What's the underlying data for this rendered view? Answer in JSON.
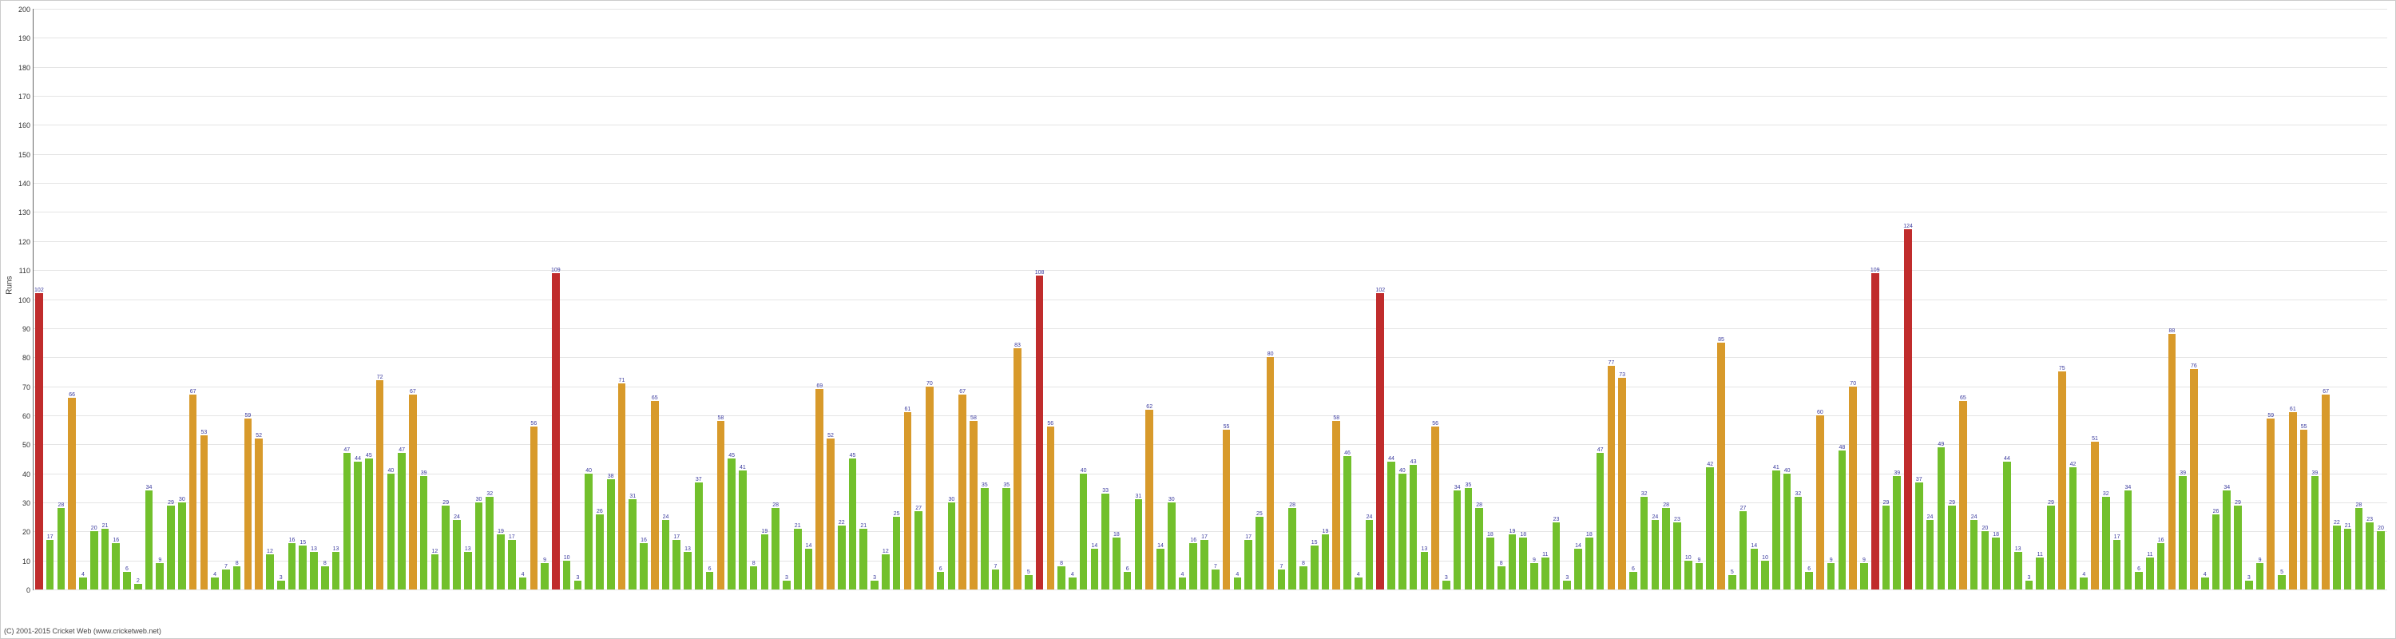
{
  "chart": {
    "type": "bar",
    "ylabel": "Runs",
    "ylim": [
      0,
      200
    ],
    "ytick_step": 10,
    "background_color": "#ffffff",
    "grid_color": "#e5e5e5",
    "label_color": "#3b3b9e",
    "colors": {
      "green": "#72c02c",
      "orange": "#d89a2b",
      "red": "#c02c2c"
    },
    "copyright": "(C) 2001-2015 Cricket Web (www.cricketweb.net)",
    "bars": [
      {
        "v": 102,
        "c": "red"
      },
      {
        "v": 17,
        "c": "green"
      },
      {
        "v": 28,
        "c": "green"
      },
      {
        "v": 66,
        "c": "orange"
      },
      {
        "v": 4,
        "c": "green"
      },
      {
        "v": 20,
        "c": "green"
      },
      {
        "v": 21,
        "c": "green"
      },
      {
        "v": 16,
        "c": "green"
      },
      {
        "v": 6,
        "c": "green"
      },
      {
        "v": 2,
        "c": "green"
      },
      {
        "v": 34,
        "c": "green"
      },
      {
        "v": 9,
        "c": "green"
      },
      {
        "v": 29,
        "c": "green"
      },
      {
        "v": 30,
        "c": "green"
      },
      {
        "v": 67,
        "c": "orange"
      },
      {
        "v": 53,
        "c": "orange"
      },
      {
        "v": 4,
        "c": "green"
      },
      {
        "v": 7,
        "c": "green"
      },
      {
        "v": 8,
        "c": "green"
      },
      {
        "v": 59,
        "c": "orange"
      },
      {
        "v": 52,
        "c": "orange"
      },
      {
        "v": 12,
        "c": "green"
      },
      {
        "v": 3,
        "c": "green"
      },
      {
        "v": 16,
        "c": "green"
      },
      {
        "v": 15,
        "c": "green"
      },
      {
        "v": 13,
        "c": "green"
      },
      {
        "v": 8,
        "c": "green"
      },
      {
        "v": 13,
        "c": "green"
      },
      {
        "v": 47,
        "c": "green"
      },
      {
        "v": 44,
        "c": "green"
      },
      {
        "v": 45,
        "c": "green"
      },
      {
        "v": 72,
        "c": "orange"
      },
      {
        "v": 40,
        "c": "green"
      },
      {
        "v": 47,
        "c": "green"
      },
      {
        "v": 67,
        "c": "orange"
      },
      {
        "v": 39,
        "c": "green"
      },
      {
        "v": 12,
        "c": "green"
      },
      {
        "v": 29,
        "c": "green"
      },
      {
        "v": 24,
        "c": "green"
      },
      {
        "v": 13,
        "c": "green"
      },
      {
        "v": 30,
        "c": "green"
      },
      {
        "v": 32,
        "c": "green"
      },
      {
        "v": 19,
        "c": "green"
      },
      {
        "v": 17,
        "c": "green"
      },
      {
        "v": 4,
        "c": "green"
      },
      {
        "v": 56,
        "c": "orange"
      },
      {
        "v": 9,
        "c": "green"
      },
      {
        "v": 109,
        "c": "red"
      },
      {
        "v": 10,
        "c": "green"
      },
      {
        "v": 3,
        "c": "green"
      },
      {
        "v": 40,
        "c": "green"
      },
      {
        "v": 26,
        "c": "green"
      },
      {
        "v": 38,
        "c": "green"
      },
      {
        "v": 71,
        "c": "orange"
      },
      {
        "v": 31,
        "c": "green"
      },
      {
        "v": 16,
        "c": "green"
      },
      {
        "v": 65,
        "c": "orange"
      },
      {
        "v": 24,
        "c": "green"
      },
      {
        "v": 17,
        "c": "green"
      },
      {
        "v": 13,
        "c": "green"
      },
      {
        "v": 37,
        "c": "green"
      },
      {
        "v": 6,
        "c": "green"
      },
      {
        "v": 58,
        "c": "orange"
      },
      {
        "v": 45,
        "c": "green"
      },
      {
        "v": 41,
        "c": "green"
      },
      {
        "v": 8,
        "c": "green"
      },
      {
        "v": 19,
        "c": "green"
      },
      {
        "v": 28,
        "c": "green"
      },
      {
        "v": 3,
        "c": "green"
      },
      {
        "v": 21,
        "c": "green"
      },
      {
        "v": 14,
        "c": "green"
      },
      {
        "v": 69,
        "c": "orange"
      },
      {
        "v": 52,
        "c": "orange"
      },
      {
        "v": 22,
        "c": "green"
      },
      {
        "v": 45,
        "c": "green"
      },
      {
        "v": 21,
        "c": "green"
      },
      {
        "v": 3,
        "c": "green"
      },
      {
        "v": 12,
        "c": "green"
      },
      {
        "v": 25,
        "c": "green"
      },
      {
        "v": 61,
        "c": "orange"
      },
      {
        "v": 27,
        "c": "green"
      },
      {
        "v": 70,
        "c": "orange"
      },
      {
        "v": 6,
        "c": "green"
      },
      {
        "v": 30,
        "c": "green"
      },
      {
        "v": 67,
        "c": "orange"
      },
      {
        "v": 58,
        "c": "orange"
      },
      {
        "v": 35,
        "c": "green"
      },
      {
        "v": 7,
        "c": "green"
      },
      {
        "v": 35,
        "c": "green"
      },
      {
        "v": 83,
        "c": "orange"
      },
      {
        "v": 5,
        "c": "green"
      },
      {
        "v": 108,
        "c": "red"
      },
      {
        "v": 56,
        "c": "orange"
      },
      {
        "v": 8,
        "c": "green"
      },
      {
        "v": 4,
        "c": "green"
      },
      {
        "v": 40,
        "c": "green"
      },
      {
        "v": 14,
        "c": "green"
      },
      {
        "v": 33,
        "c": "green"
      },
      {
        "v": 18,
        "c": "green"
      },
      {
        "v": 6,
        "c": "green"
      },
      {
        "v": 31,
        "c": "green"
      },
      {
        "v": 62,
        "c": "orange"
      },
      {
        "v": 14,
        "c": "green"
      },
      {
        "v": 30,
        "c": "green"
      },
      {
        "v": 4,
        "c": "green"
      },
      {
        "v": 16,
        "c": "green"
      },
      {
        "v": 17,
        "c": "green"
      },
      {
        "v": 7,
        "c": "green"
      },
      {
        "v": 55,
        "c": "orange"
      },
      {
        "v": 4,
        "c": "green"
      },
      {
        "v": 17,
        "c": "green"
      },
      {
        "v": 25,
        "c": "green"
      },
      {
        "v": 80,
        "c": "orange"
      },
      {
        "v": 7,
        "c": "green"
      },
      {
        "v": 28,
        "c": "green"
      },
      {
        "v": 8,
        "c": "green"
      },
      {
        "v": 15,
        "c": "green"
      },
      {
        "v": 19,
        "c": "green"
      },
      {
        "v": 58,
        "c": "orange"
      },
      {
        "v": 46,
        "c": "green"
      },
      {
        "v": 4,
        "c": "green"
      },
      {
        "v": 24,
        "c": "green"
      },
      {
        "v": 102,
        "c": "red"
      },
      {
        "v": 44,
        "c": "green"
      },
      {
        "v": 40,
        "c": "green"
      },
      {
        "v": 43,
        "c": "green"
      },
      {
        "v": 13,
        "c": "green"
      },
      {
        "v": 56,
        "c": "orange"
      },
      {
        "v": 3,
        "c": "green"
      },
      {
        "v": 34,
        "c": "green"
      },
      {
        "v": 35,
        "c": "green"
      },
      {
        "v": 28,
        "c": "green"
      },
      {
        "v": 18,
        "c": "green"
      },
      {
        "v": 8,
        "c": "green"
      },
      {
        "v": 19,
        "c": "green"
      },
      {
        "v": 18,
        "c": "green"
      },
      {
        "v": 9,
        "c": "green"
      },
      {
        "v": 11,
        "c": "green"
      },
      {
        "v": 23,
        "c": "green"
      },
      {
        "v": 3,
        "c": "green"
      },
      {
        "v": 14,
        "c": "green"
      },
      {
        "v": 18,
        "c": "green"
      },
      {
        "v": 47,
        "c": "green"
      },
      {
        "v": 77,
        "c": "orange"
      },
      {
        "v": 73,
        "c": "orange"
      },
      {
        "v": 6,
        "c": "green"
      },
      {
        "v": 32,
        "c": "green"
      },
      {
        "v": 24,
        "c": "green"
      },
      {
        "v": 28,
        "c": "green"
      },
      {
        "v": 23,
        "c": "green"
      },
      {
        "v": 10,
        "c": "green"
      },
      {
        "v": 9,
        "c": "green"
      },
      {
        "v": 42,
        "c": "green"
      },
      {
        "v": 85,
        "c": "orange"
      },
      {
        "v": 5,
        "c": "green"
      },
      {
        "v": 27,
        "c": "green"
      },
      {
        "v": 14,
        "c": "green"
      },
      {
        "v": 10,
        "c": "green"
      },
      {
        "v": 41,
        "c": "green"
      },
      {
        "v": 40,
        "c": "green"
      },
      {
        "v": 32,
        "c": "green"
      },
      {
        "v": 6,
        "c": "green"
      },
      {
        "v": 60,
        "c": "orange"
      },
      {
        "v": 9,
        "c": "green"
      },
      {
        "v": 48,
        "c": "green"
      },
      {
        "v": 70,
        "c": "orange"
      },
      {
        "v": 9,
        "c": "green"
      },
      {
        "v": 109,
        "c": "red"
      },
      {
        "v": 29,
        "c": "green"
      },
      {
        "v": 39,
        "c": "green"
      },
      {
        "v": 124,
        "c": "red"
      },
      {
        "v": 37,
        "c": "green"
      },
      {
        "v": 24,
        "c": "green"
      },
      {
        "v": 49,
        "c": "green"
      },
      {
        "v": 29,
        "c": "green"
      },
      {
        "v": 65,
        "c": "orange"
      },
      {
        "v": 24,
        "c": "green"
      },
      {
        "v": 20,
        "c": "green"
      },
      {
        "v": 18,
        "c": "green"
      },
      {
        "v": 44,
        "c": "green"
      },
      {
        "v": 13,
        "c": "green"
      },
      {
        "v": 3,
        "c": "green"
      },
      {
        "v": 11,
        "c": "green"
      },
      {
        "v": 29,
        "c": "green"
      },
      {
        "v": 75,
        "c": "orange"
      },
      {
        "v": 42,
        "c": "green"
      },
      {
        "v": 4,
        "c": "green"
      },
      {
        "v": 51,
        "c": "orange"
      },
      {
        "v": 32,
        "c": "green"
      },
      {
        "v": 17,
        "c": "green"
      },
      {
        "v": 34,
        "c": "green"
      },
      {
        "v": 6,
        "c": "green"
      },
      {
        "v": 11,
        "c": "green"
      },
      {
        "v": 16,
        "c": "green"
      },
      {
        "v": 88,
        "c": "orange"
      },
      {
        "v": 39,
        "c": "green"
      },
      {
        "v": 76,
        "c": "orange"
      },
      {
        "v": 4,
        "c": "green"
      },
      {
        "v": 26,
        "c": "green"
      },
      {
        "v": 34,
        "c": "green"
      },
      {
        "v": 29,
        "c": "green"
      },
      {
        "v": 3,
        "c": "green"
      },
      {
        "v": 9,
        "c": "green"
      },
      {
        "v": 59,
        "c": "orange"
      },
      {
        "v": 5,
        "c": "green"
      },
      {
        "v": 61,
        "c": "orange"
      },
      {
        "v": 55,
        "c": "orange"
      },
      {
        "v": 39,
        "c": "green"
      },
      {
        "v": 67,
        "c": "orange"
      },
      {
        "v": 22,
        "c": "green"
      },
      {
        "v": 21,
        "c": "green"
      },
      {
        "v": 28,
        "c": "green"
      },
      {
        "v": 23,
        "c": "green"
      },
      {
        "v": 20,
        "c": "green"
      }
    ]
  }
}
